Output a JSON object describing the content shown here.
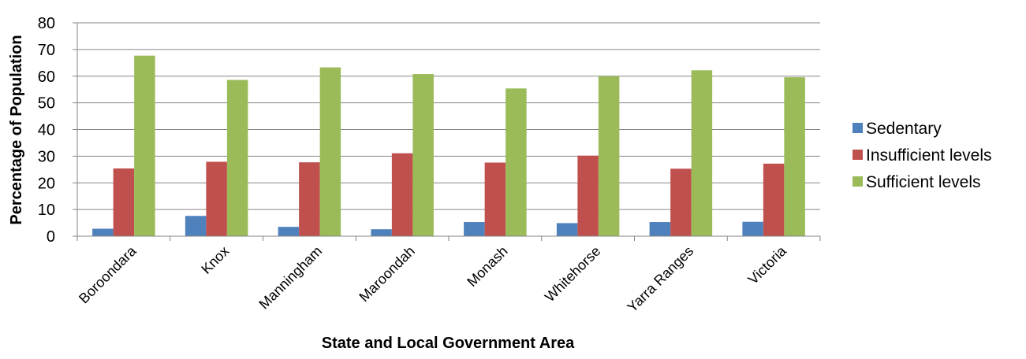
{
  "chart_data": {
    "type": "bar",
    "title": "",
    "xlabel": "State and Local Government Area",
    "ylabel": "Percentage of Population",
    "ylim": [
      0,
      80
    ],
    "ytick_step": 10,
    "yticks": [
      "0",
      "10",
      "20",
      "30",
      "40",
      "50",
      "60",
      "70",
      "80"
    ],
    "grid": true,
    "legend_position": "right",
    "categories": [
      "Boroondara",
      "Knox",
      "Manningham",
      "Maroondah",
      "Monash",
      "Whitehorse",
      "Yarra Ranges",
      "Victoria"
    ],
    "series": [
      {
        "name": "Sedentary",
        "color": "#4F81BD",
        "values": [
          2.8,
          7.6,
          3.5,
          2.6,
          5.3,
          4.9,
          5.3,
          5.4
        ]
      },
      {
        "name": "Insufficient levels",
        "color": "#C0504D",
        "values": [
          25.4,
          27.9,
          27.7,
          31.1,
          27.6,
          30.2,
          25.3,
          27.2
        ]
      },
      {
        "name": "Sufficient levels",
        "color": "#9BBB59",
        "values": [
          67.7,
          58.6,
          63.3,
          60.8,
          55.4,
          60.0,
          62.2,
          59.6
        ]
      }
    ]
  }
}
